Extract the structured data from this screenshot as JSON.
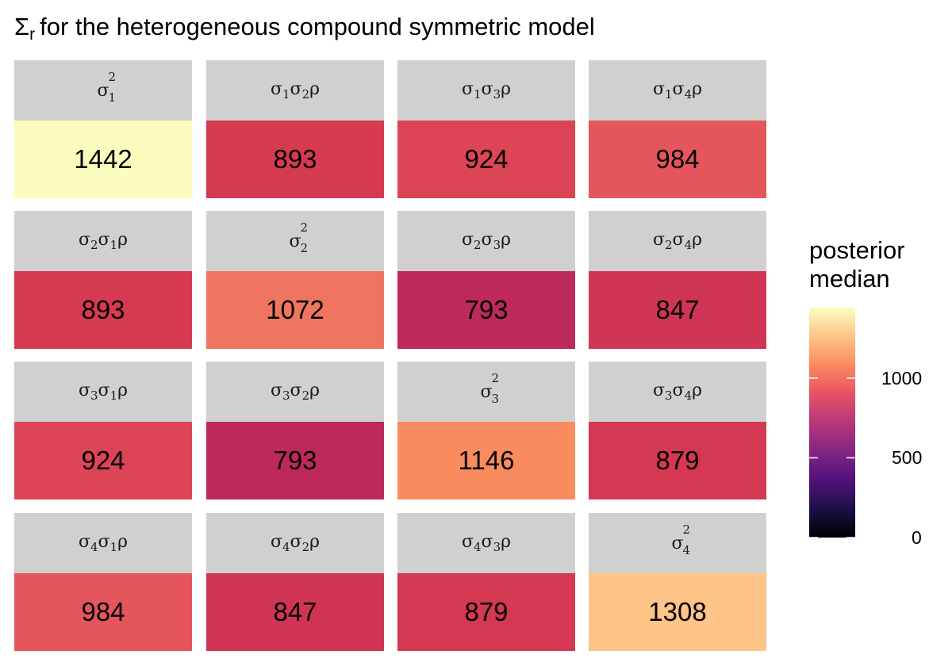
{
  "title": {
    "main_symbol": "Σ",
    "main_subscript": "r",
    "text": "for the heterogeneous compound symmetric model"
  },
  "chart_data": {
    "type": "heatmap",
    "title": "Σr for the heterogeneous compound symmetric model",
    "rows": 4,
    "cols": 4,
    "cells": [
      {
        "label": "σ1^2",
        "kind": "variance",
        "i": 1,
        "value": 1442,
        "color": "#fbfdbf"
      },
      {
        "label": "σ1σ2ρ",
        "kind": "cov",
        "i": 1,
        "j": 2,
        "value": 893,
        "color": "#d63a51"
      },
      {
        "label": "σ1σ3ρ",
        "kind": "cov",
        "i": 1,
        "j": 3,
        "value": 924,
        "color": "#dc4555"
      },
      {
        "label": "σ1σ4ρ",
        "kind": "cov",
        "i": 1,
        "j": 4,
        "value": 984,
        "color": "#e5565c"
      },
      {
        "label": "σ2σ1ρ",
        "kind": "cov",
        "i": 2,
        "j": 1,
        "value": 893,
        "color": "#d63a51"
      },
      {
        "label": "σ2^2",
        "kind": "variance",
        "i": 2,
        "value": 1072,
        "color": "#f07560"
      },
      {
        "label": "σ2σ3ρ",
        "kind": "cov",
        "i": 2,
        "j": 3,
        "value": 793,
        "color": "#bd2a5a"
      },
      {
        "label": "σ2σ4ρ",
        "kind": "cov",
        "i": 2,
        "j": 4,
        "value": 847,
        "color": "#d03556"
      },
      {
        "label": "σ3σ1ρ",
        "kind": "cov",
        "i": 3,
        "j": 1,
        "value": 924,
        "color": "#dc4555"
      },
      {
        "label": "σ3σ2ρ",
        "kind": "cov",
        "i": 3,
        "j": 2,
        "value": 793,
        "color": "#bd2a5a"
      },
      {
        "label": "σ3^2",
        "kind": "variance",
        "i": 3,
        "value": 1146,
        "color": "#f98c5e"
      },
      {
        "label": "σ3σ4ρ",
        "kind": "cov",
        "i": 3,
        "j": 4,
        "value": 879,
        "color": "#d43853"
      },
      {
        "label": "σ4σ1ρ",
        "kind": "cov",
        "i": 4,
        "j": 1,
        "value": 984,
        "color": "#e5565c"
      },
      {
        "label": "σ4σ2ρ",
        "kind": "cov",
        "i": 4,
        "j": 2,
        "value": 847,
        "color": "#d03556"
      },
      {
        "label": "σ4σ3ρ",
        "kind": "cov",
        "i": 4,
        "j": 3,
        "value": 879,
        "color": "#d43853"
      },
      {
        "label": "σ4^2",
        "kind": "variance",
        "i": 4,
        "value": 1308,
        "color": "#fec488"
      }
    ],
    "legend": {
      "title": [
        "posterior",
        "median"
      ],
      "range": [
        0,
        1442
      ],
      "ticks": [
        0,
        500,
        1000
      ],
      "colormap": "magma",
      "placement": "right",
      "stops": [
        "#000004",
        "#1d1147",
        "#51127c",
        "#822681",
        "#b73779",
        "#e75263",
        "#fc8961",
        "#fec488",
        "#fbfdbf"
      ]
    }
  }
}
